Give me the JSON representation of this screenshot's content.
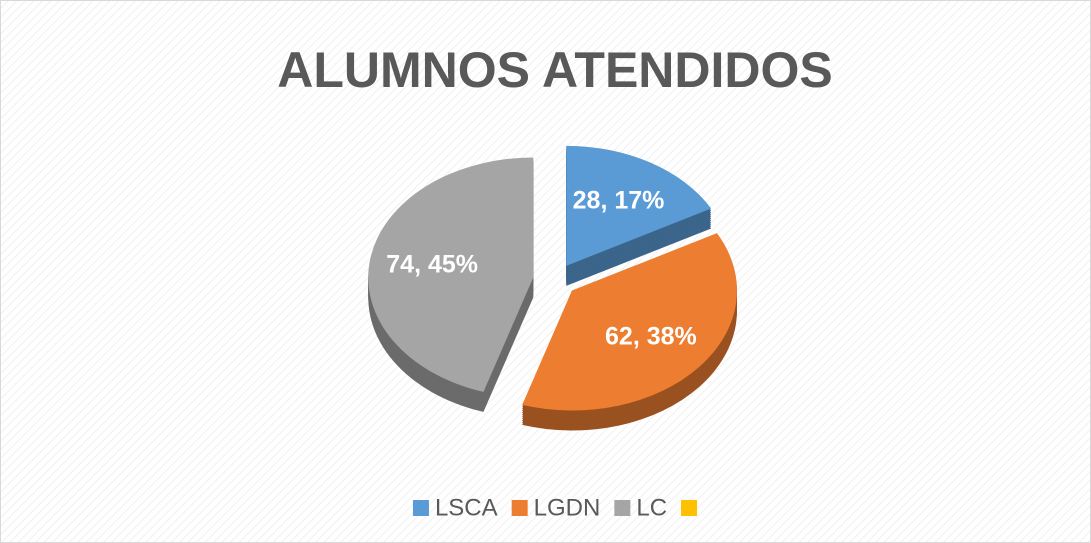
{
  "chart_data": {
    "type": "pie",
    "title": "ALUMNOS ATENDIDOS",
    "categories": [
      "LSCA",
      "LGDN",
      "LC",
      null
    ],
    "values": [
      28,
      62,
      74,
      null
    ],
    "value_labels": [
      "28, 17%",
      "62, 38%",
      "74, 45%",
      null
    ],
    "colors": [
      "#5b9bd5",
      "#ed7d31",
      "#a5a5a5",
      "#ffc000"
    ],
    "legend": "bottom"
  }
}
